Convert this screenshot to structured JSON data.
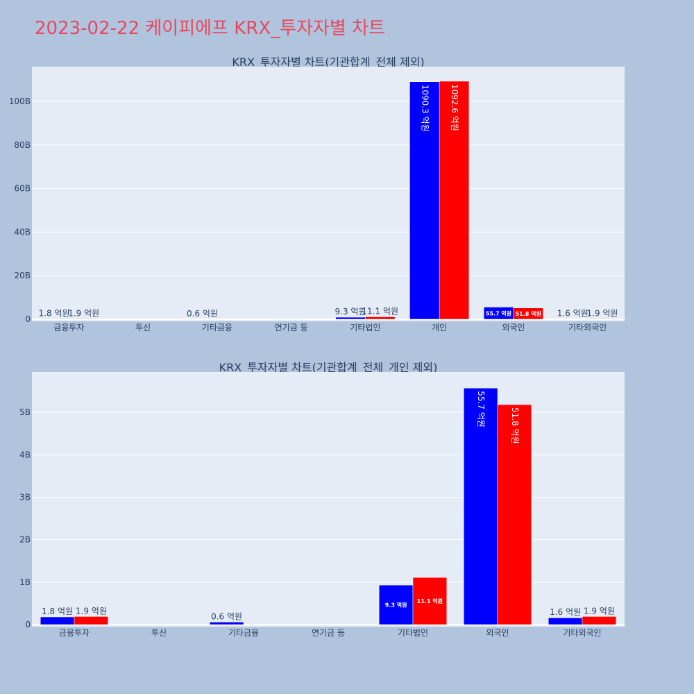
{
  "page": {
    "title": "2023-02-22 케이피에프 KRX_투자자별 차트",
    "title_color": "#e8485e"
  },
  "colors": {
    "buy": "#0000ff",
    "sell": "#ff0000",
    "plot_bg": "#e5ecf6",
    "paper_bg": "#b0c4de",
    "text": "#2a3f5f"
  },
  "chart_data": [
    {
      "type": "bar",
      "title": "KRX_투자자별 차트(기관합계_전체 제외)",
      "categories": [
        "금융투자",
        "투신",
        "기타금융",
        "연기금 등",
        "기타법인",
        "개인",
        "외국인",
        "기타외국인"
      ],
      "ylim": [
        0,
        115
      ],
      "yticks": [
        0,
        20,
        40,
        60,
        80,
        100
      ],
      "ytick_labels": [
        "0",
        "20B",
        "40B",
        "60B",
        "80B",
        "100B"
      ],
      "grid": true,
      "series": [
        {
          "values": [
            0.18,
            0,
            0.06,
            0,
            0.93,
            109.03,
            5.57,
            0.16
          ],
          "labels": [
            "1.8 억원",
            "",
            "0.6 억원",
            "",
            "9.3 억원",
            "1090.3 억원",
            "55.7 억원",
            "1.6 억원"
          ]
        },
        {
          "values": [
            0.19,
            0,
            0,
            0,
            1.11,
            109.26,
            5.18,
            0.19
          ],
          "labels": [
            "1.9 억원",
            "",
            "",
            "",
            "11.1 억원",
            "1092.6 억원",
            "51.8 억원",
            "1.9 억원"
          ]
        }
      ]
    },
    {
      "type": "bar",
      "title": "KRX_투자자별 차트(기관합계_전체_개인 제외)",
      "categories": [
        "금융투자",
        "투신",
        "기타금융",
        "연기금 등",
        "기타법인",
        "외국인",
        "기타외국인"
      ],
      "ylim": [
        0,
        5.9
      ],
      "yticks": [
        0,
        1,
        2,
        3,
        4,
        5
      ],
      "ytick_labels": [
        "0",
        "1B",
        "2B",
        "3B",
        "4B",
        "5B"
      ],
      "grid": true,
      "series": [
        {
          "values": [
            0.18,
            0,
            0.06,
            0,
            0.93,
            5.57,
            0.16
          ],
          "labels": [
            "1.8 억원",
            "",
            "0.6 억원",
            "",
            "9.3 억원",
            "55.7 억원",
            "1.6 억원"
          ]
        },
        {
          "values": [
            0.19,
            0,
            0,
            0,
            1.11,
            5.18,
            0.19
          ],
          "labels": [
            "1.9 억원",
            "",
            "",
            "",
            "11.1 억원",
            "51.8 억원",
            "1.9 억원"
          ]
        }
      ]
    }
  ]
}
